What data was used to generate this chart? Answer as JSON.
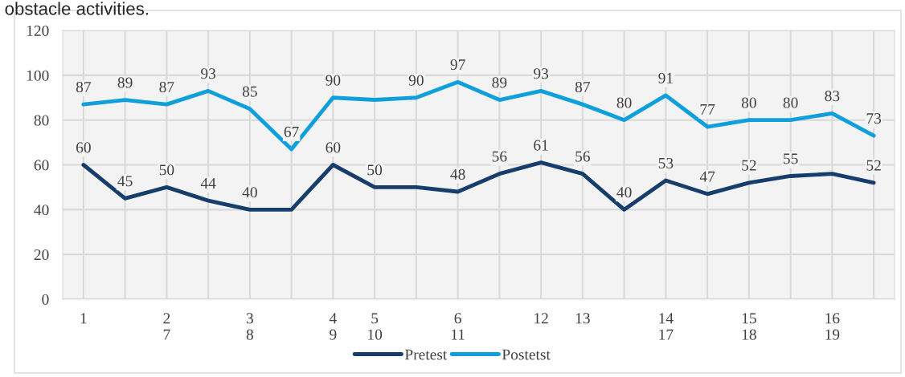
{
  "chart_data": {
    "type": "line",
    "title": "obstacle activities.",
    "categories": [
      "1",
      null,
      "2\n7",
      null,
      "3\n8",
      null,
      "4\n9",
      "5\n10",
      null,
      "6\n11",
      null,
      "12",
      "13",
      null,
      "14\n17",
      null,
      "15\n18",
      null,
      "16\n19",
      null
    ],
    "series": [
      {
        "name": "Pretest",
        "color": "#163d6b",
        "values": [
          60,
          45,
          50,
          44,
          40,
          40,
          60,
          50,
          50,
          48,
          56,
          61,
          56,
          40,
          53,
          47,
          52,
          55,
          56,
          52
        ],
        "value_labels": [
          "60",
          "45",
          "50",
          "44",
          "40",
          null,
          "60",
          "50",
          null,
          "48",
          "56",
          "61",
          "56",
          "40",
          "53",
          "47",
          "52",
          "55",
          null,
          "52"
        ]
      },
      {
        "name": "Postetst",
        "color": "#0fa0dc",
        "values": [
          87,
          89,
          87,
          93,
          85,
          67,
          90,
          89,
          90,
          97,
          89,
          93,
          87,
          80,
          91,
          77,
          80,
          80,
          83,
          73
        ],
        "value_labels": [
          "87",
          "89",
          "87",
          "93",
          "85",
          "67",
          "90",
          null,
          "90",
          "97",
          "89",
          "93",
          "87",
          "80",
          "91",
          "77",
          "80",
          "80",
          "83",
          "73"
        ]
      }
    ],
    "ylim": [
      0,
      120
    ],
    "yticks": [
      0,
      20,
      40,
      60,
      80,
      100,
      120
    ],
    "grid": true,
    "legend": "bottom",
    "marker": "none",
    "line_style": "solid"
  }
}
